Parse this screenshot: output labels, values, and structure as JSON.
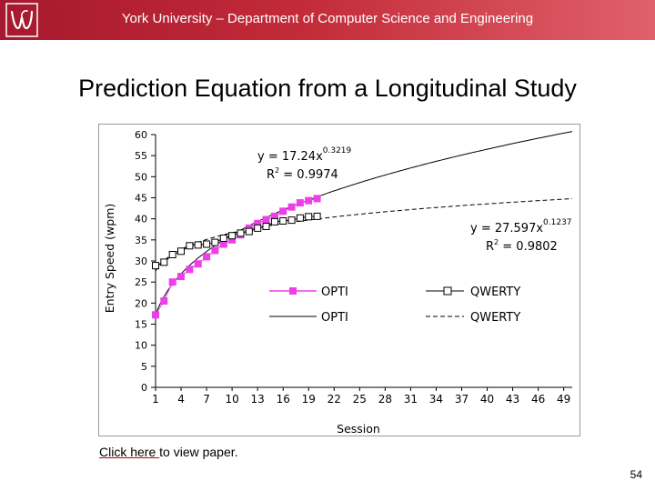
{
  "header": {
    "title": "York University – Department of Computer Science and Engineering"
  },
  "slide": {
    "title": "Prediction Equation from a Longitudinal Study",
    "link_text": "Click here ",
    "link_suffix": "to view paper.",
    "page_number": "54"
  },
  "colors": {
    "header": "#a6192e",
    "opti": "#ee3ee9",
    "qwerty": "#000000",
    "link_underline": "#c00000"
  },
  "chart_data": {
    "type": "line",
    "title": "",
    "xlabel": "Session",
    "ylabel": "Entry Speed (wpm)",
    "ylim": [
      0,
      60
    ],
    "y_ticks": [
      "0",
      "5",
      "10",
      "15",
      "20",
      "25",
      "30",
      "35",
      "40",
      "45",
      "50",
      "55",
      "60"
    ],
    "xlim": [
      1,
      50
    ],
    "x_ticks": [
      "1",
      "4",
      "7",
      "10",
      "13",
      "16",
      "19",
      "22",
      "25",
      "28",
      "31",
      "34",
      "37",
      "40",
      "43",
      "46",
      "49"
    ],
    "series": [
      {
        "name": "OPTI",
        "kind": "markers",
        "marker": "square-filled",
        "color": "#ee3ee9",
        "x": [
          1,
          2,
          3,
          4,
          5,
          6,
          7,
          8,
          9,
          10,
          11,
          12,
          13,
          14,
          15,
          16,
          17,
          18,
          19,
          20
        ],
        "y": [
          17.2,
          20.5,
          25.0,
          26.3,
          28.0,
          29.3,
          31.0,
          32.5,
          34.0,
          35.0,
          36.2,
          37.8,
          38.9,
          39.8,
          40.6,
          41.8,
          42.8,
          43.8,
          44.3,
          44.8
        ]
      },
      {
        "name": "QWERTY",
        "kind": "markers",
        "marker": "square-open",
        "color": "#000000",
        "x": [
          1,
          2,
          3,
          4,
          5,
          6,
          7,
          8,
          9,
          10,
          11,
          12,
          13,
          14,
          15,
          16,
          17,
          18,
          19,
          20
        ],
        "y": [
          28.9,
          29.7,
          31.5,
          32.3,
          33.6,
          33.8,
          34.0,
          34.4,
          35.4,
          36.0,
          36.6,
          37.0,
          37.8,
          38.2,
          39.3,
          39.5,
          39.7,
          40.2,
          40.5,
          40.6
        ]
      },
      {
        "name": "OPTI",
        "kind": "trendline",
        "dash": "solid",
        "color": "#000000",
        "equation": "y = 17.24x",
        "exponent": "0.3219",
        "r2_prefix": "R",
        "r2_value": " = 0.9974",
        "coef": 17.24,
        "power": 0.3219
      },
      {
        "name": "QWERTY",
        "kind": "trendline",
        "dash": "dashed",
        "color": "#000000",
        "equation": "y = 27.597x",
        "exponent": "0.1237",
        "r2_prefix": "R",
        "r2_value": " = 0.9802",
        "coef": 27.597,
        "power": 0.1237
      }
    ],
    "legend_placement": "inside-lower-center",
    "grid": false
  }
}
